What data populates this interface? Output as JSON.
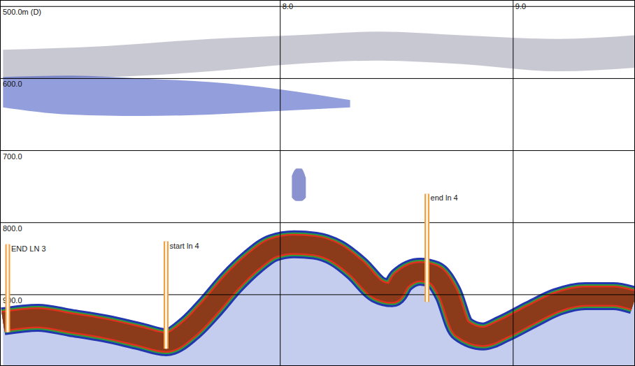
{
  "chart_data": {
    "type": "echogram",
    "xlim": [
      6.8,
      9.52
    ],
    "xticks": [
      {
        "value": 8,
        "label": "8.0"
      },
      {
        "value": 9,
        "label": "9.0"
      }
    ],
    "ylim": [
      492,
      998
    ],
    "yticks": [
      {
        "value": 500,
        "label": "500.0m (D)"
      },
      {
        "value": 600,
        "label": "600.0"
      },
      {
        "value": 700,
        "label": "700.0"
      },
      {
        "value": 800,
        "label": "800.0"
      },
      {
        "value": 900,
        "label": "900.0"
      }
    ],
    "grid": true,
    "seabed": {
      "x": [
        6.81,
        6.96,
        7.1,
        7.25,
        7.4,
        7.51,
        7.61,
        7.7,
        7.79,
        7.88,
        7.97,
        8.06,
        8.15,
        8.24,
        8.33,
        8.42,
        8.48,
        8.52,
        8.6,
        8.66,
        8.72,
        8.78,
        8.87,
        8.96,
        9.08,
        9.19,
        9.31,
        9.43,
        9.52
      ],
      "depth": [
        937,
        932,
        939,
        947,
        958,
        966,
        947,
        917,
        883,
        855,
        835,
        830,
        832,
        842,
        864,
        893,
        898,
        880,
        868,
        872,
        898,
        947,
        958,
        947,
        927,
        910,
        902,
        902,
        908
      ],
      "color": "#8b3a1a"
    },
    "layers": [
      {
        "x": [
          6.81,
          7.25,
          7.7,
          8.06,
          8.42,
          8.78,
          9.19,
          9.52
        ],
        "top": [
          560,
          555,
          545,
          540,
          535,
          540,
          545,
          540
        ],
        "bottom": [
          600,
          598,
          590,
          580,
          575,
          580,
          590,
          585
        ],
        "color": "#9a9aae"
      },
      {
        "x": [
          6.81,
          7.1,
          7.4,
          7.7,
          8.0,
          8.3
        ],
        "top": [
          598,
          596,
          600,
          605,
          615,
          630
        ],
        "bottom": [
          640,
          650,
          652,
          650,
          645,
          640
        ],
        "color": "#3a4fc0"
      },
      {
        "x": [
          8.05,
          8.07,
          8.09,
          8.11
        ],
        "top": [
          735,
          725,
          725,
          738
        ],
        "bottom": [
          765,
          770,
          770,
          765
        ],
        "color": "#2a3aa8"
      }
    ],
    "annotations": [
      {
        "text": "END LN 3",
        "x": 6.83,
        "top": 830,
        "bottom": 952
      },
      {
        "text": "start ln 4",
        "x": 7.51,
        "top": 826,
        "bottom": 975
      },
      {
        "text": "end ln 4",
        "x": 8.63,
        "top": 760,
        "bottom": 910
      }
    ]
  }
}
